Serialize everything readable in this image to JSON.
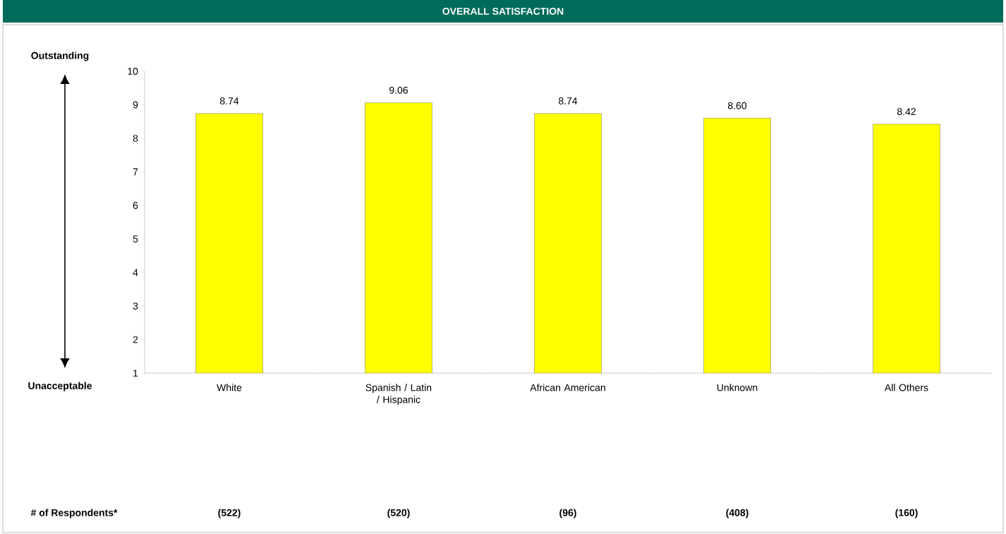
{
  "chart_data": {
    "type": "bar",
    "title": "OVERALL SATISFACTION",
    "categories": [
      "White",
      "Spanish / Latin / Hispanic",
      "African American",
      "Unknown",
      "All Others"
    ],
    "values": [
      8.74,
      9.06,
      8.74,
      8.6,
      8.42
    ],
    "value_labels": [
      "8.74",
      "9.06",
      "8.74",
      "8.60",
      "8.42"
    ],
    "color": "#ffff00",
    "ylim": [
      1,
      10
    ],
    "yticks": [
      1,
      2,
      3,
      4,
      5,
      6,
      7,
      8,
      9,
      10
    ],
    "annotations": [
      "Outstanding",
      "Unacceptable",
      "# of Respondents*",
      "(522)",
      "(520)",
      "(96)",
      "(408)",
      "(160)"
    ]
  }
}
